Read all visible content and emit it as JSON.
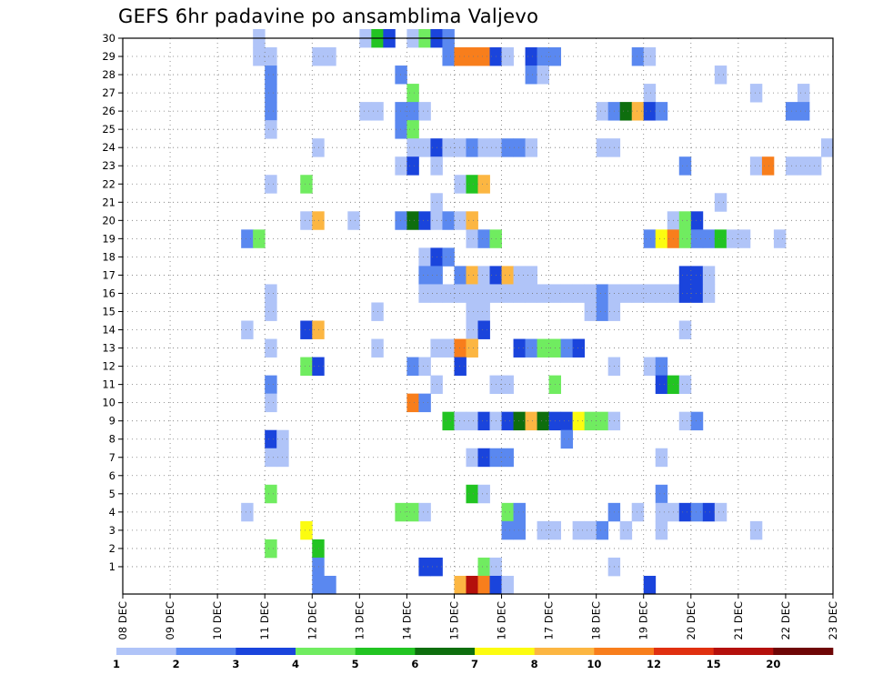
{
  "chart_data": {
    "type": "heatmap",
    "title": "GEFS 6hr padavine po ansamblima Valjevo",
    "x_ticks": [
      "08 DEC",
      "09 DEC",
      "10 DEC",
      "11 DEC",
      "12 DEC",
      "13 DEC",
      "14 DEC",
      "15 DEC",
      "16 DEC",
      "17 DEC",
      "18 DEC",
      "19 DEC",
      "20 DEC",
      "21 DEC",
      "22 DEC",
      "23 DEC"
    ],
    "y_ticks": [
      1,
      2,
      3,
      4,
      5,
      6,
      7,
      8,
      9,
      10,
      11,
      12,
      13,
      14,
      15,
      16,
      17,
      18,
      19,
      20,
      21,
      22,
      23,
      24,
      25,
      26,
      27,
      28,
      29,
      30
    ],
    "xlim": [
      "08 DEC 00Z",
      "23 DEC 00Z"
    ],
    "ylim": [
      0,
      30
    ],
    "time_step_hours": 6,
    "grid": "dotted",
    "legend": {
      "position": "bottom",
      "boundaries": [
        "1",
        "2",
        "3",
        "4",
        "5",
        "6",
        "7",
        "8",
        "10",
        "12",
        "15",
        "20"
      ],
      "colors": [
        "#b0c4f8",
        "#5a88f0",
        "#1a44dc",
        "#70ec60",
        "#22c422",
        "#0e6e0e",
        "#fcfc10",
        "#fcb642",
        "#f87e1c",
        "#e03010",
        "#b4100c",
        "#6e0606"
      ]
    },
    "cells": [
      {
        "m": 30,
        "s": [
          [
            11,
            1
          ],
          [
            20,
            1
          ],
          [
            21,
            5
          ],
          [
            22,
            3
          ],
          [
            24,
            1
          ],
          [
            25,
            4
          ],
          [
            26,
            3
          ],
          [
            27,
            2
          ]
        ]
      },
      {
        "m": 29,
        "s": [
          [
            11,
            1
          ],
          [
            12,
            1
          ],
          [
            16,
            1
          ],
          [
            17,
            1
          ],
          [
            27,
            2
          ],
          [
            28,
            9
          ],
          [
            29,
            9
          ],
          [
            30,
            9
          ],
          [
            31,
            3
          ],
          [
            32,
            1
          ],
          [
            34,
            3
          ],
          [
            35,
            2
          ],
          [
            36,
            2
          ],
          [
            43,
            2
          ],
          [
            44,
            1
          ]
        ]
      },
      {
        "m": 28,
        "s": [
          [
            12,
            2
          ],
          [
            23,
            2
          ],
          [
            34,
            2
          ],
          [
            35,
            1
          ],
          [
            50,
            1
          ]
        ]
      },
      {
        "m": 27,
        "s": [
          [
            12,
            2
          ],
          [
            24,
            4
          ],
          [
            44,
            1
          ],
          [
            53,
            1
          ],
          [
            57,
            1
          ]
        ]
      },
      {
        "m": 26,
        "s": [
          [
            12,
            2
          ],
          [
            20,
            1
          ],
          [
            21,
            1
          ],
          [
            23,
            2
          ],
          [
            24,
            2
          ],
          [
            25,
            1
          ],
          [
            40,
            1
          ],
          [
            41,
            2
          ],
          [
            42,
            6
          ],
          [
            43,
            8
          ],
          [
            44,
            3
          ],
          [
            45,
            2
          ],
          [
            56,
            2
          ],
          [
            57,
            2
          ]
        ]
      },
      {
        "m": 25,
        "s": [
          [
            12,
            1
          ],
          [
            23,
            2
          ],
          [
            24,
            4
          ]
        ]
      },
      {
        "m": 24,
        "s": [
          [
            16,
            1
          ],
          [
            24,
            1
          ],
          [
            25,
            1
          ],
          [
            26,
            3
          ],
          [
            27,
            1
          ],
          [
            28,
            1
          ],
          [
            29,
            2
          ],
          [
            30,
            1
          ],
          [
            31,
            1
          ],
          [
            32,
            2
          ],
          [
            33,
            2
          ],
          [
            34,
            1
          ],
          [
            40,
            1
          ],
          [
            41,
            1
          ],
          [
            59,
            1
          ]
        ]
      },
      {
        "m": 23,
        "s": [
          [
            23,
            1
          ],
          [
            24,
            3
          ],
          [
            26,
            1
          ],
          [
            47,
            2
          ],
          [
            53,
            1
          ],
          [
            54,
            9
          ],
          [
            56,
            1
          ],
          [
            57,
            1
          ],
          [
            58,
            1
          ]
        ]
      },
      {
        "m": 22,
        "s": [
          [
            12,
            1
          ],
          [
            15,
            4
          ],
          [
            28,
            1
          ],
          [
            29,
            5
          ],
          [
            30,
            8
          ]
        ]
      },
      {
        "m": 21,
        "s": [
          [
            26,
            1
          ],
          [
            50,
            1
          ]
        ]
      },
      {
        "m": 20,
        "s": [
          [
            15,
            1
          ],
          [
            16,
            8
          ],
          [
            19,
            1
          ],
          [
            23,
            2
          ],
          [
            24,
            6
          ],
          [
            25,
            3
          ],
          [
            26,
            1
          ],
          [
            27,
            2
          ],
          [
            28,
            1
          ],
          [
            29,
            8
          ],
          [
            46,
            1
          ],
          [
            47,
            4
          ],
          [
            48,
            3
          ]
        ]
      },
      {
        "m": 19,
        "s": [
          [
            10,
            2
          ],
          [
            11,
            4
          ],
          [
            29,
            1
          ],
          [
            30,
            2
          ],
          [
            31,
            4
          ],
          [
            44,
            2
          ],
          [
            45,
            7
          ],
          [
            46,
            9
          ],
          [
            47,
            4
          ],
          [
            48,
            2
          ],
          [
            49,
            2
          ],
          [
            50,
            5
          ],
          [
            51,
            1
          ],
          [
            52,
            1
          ],
          [
            55,
            1
          ]
        ]
      },
      {
        "m": 18,
        "s": [
          [
            25,
            1
          ],
          [
            26,
            3
          ],
          [
            27,
            2
          ]
        ]
      },
      {
        "m": 17,
        "s": [
          [
            25,
            2
          ],
          [
            26,
            2
          ],
          [
            28,
            2
          ],
          [
            29,
            8
          ],
          [
            30,
            1
          ],
          [
            31,
            3
          ],
          [
            32,
            8
          ],
          [
            33,
            1
          ],
          [
            34,
            1
          ],
          [
            47,
            3
          ],
          [
            48,
            3
          ],
          [
            49,
            1
          ]
        ]
      },
      {
        "m": 16,
        "s": [
          [
            12,
            1
          ],
          [
            25,
            1
          ],
          [
            26,
            1
          ],
          [
            27,
            1
          ],
          [
            28,
            1
          ],
          [
            29,
            1
          ],
          [
            30,
            1
          ],
          [
            31,
            1
          ],
          [
            32,
            1
          ],
          [
            33,
            1
          ],
          [
            34,
            1
          ],
          [
            35,
            1
          ],
          [
            36,
            1
          ],
          [
            37,
            1
          ],
          [
            38,
            1
          ],
          [
            39,
            1
          ],
          [
            40,
            2
          ],
          [
            41,
            1
          ],
          [
            42,
            1
          ],
          [
            43,
            1
          ],
          [
            44,
            1
          ],
          [
            45,
            1
          ],
          [
            46,
            1
          ],
          [
            47,
            3
          ],
          [
            48,
            3
          ],
          [
            49,
            1
          ]
        ]
      },
      {
        "m": 15,
        "s": [
          [
            12,
            1
          ],
          [
            21,
            1
          ],
          [
            29,
            1
          ],
          [
            30,
            1
          ],
          [
            39,
            1
          ],
          [
            40,
            2
          ],
          [
            41,
            1
          ]
        ]
      },
      {
        "m": 14,
        "s": [
          [
            10,
            1
          ],
          [
            15,
            3
          ],
          [
            16,
            8
          ],
          [
            29,
            1
          ],
          [
            30,
            3
          ],
          [
            47,
            1
          ]
        ]
      },
      {
        "m": 13,
        "s": [
          [
            12,
            1
          ],
          [
            21,
            1
          ],
          [
            26,
            1
          ],
          [
            27,
            1
          ],
          [
            28,
            9
          ],
          [
            29,
            8
          ],
          [
            33,
            3
          ],
          [
            34,
            2
          ],
          [
            35,
            4
          ],
          [
            36,
            4
          ],
          [
            37,
            2
          ],
          [
            38,
            3
          ]
        ]
      },
      {
        "m": 12,
        "s": [
          [
            15,
            4
          ],
          [
            16,
            3
          ],
          [
            24,
            2
          ],
          [
            25,
            1
          ],
          [
            28,
            3
          ],
          [
            41,
            1
          ],
          [
            44,
            1
          ],
          [
            45,
            2
          ]
        ]
      },
      {
        "m": 11,
        "s": [
          [
            12,
            2
          ],
          [
            26,
            1
          ],
          [
            31,
            1
          ],
          [
            32,
            1
          ],
          [
            36,
            4
          ],
          [
            45,
            3
          ],
          [
            46,
            5
          ],
          [
            47,
            1
          ]
        ]
      },
      {
        "m": 10,
        "s": [
          [
            12,
            1
          ],
          [
            24,
            9
          ],
          [
            25,
            2
          ]
        ]
      },
      {
        "m": 9,
        "s": [
          [
            27,
            5
          ],
          [
            28,
            1
          ],
          [
            29,
            1
          ],
          [
            30,
            3
          ],
          [
            31,
            1
          ],
          [
            32,
            3
          ],
          [
            33,
            6
          ],
          [
            34,
            8
          ],
          [
            35,
            6
          ],
          [
            36,
            3
          ],
          [
            37,
            3
          ],
          [
            38,
            7
          ],
          [
            39,
            4
          ],
          [
            40,
            4
          ],
          [
            41,
            1
          ],
          [
            47,
            1
          ],
          [
            48,
            2
          ]
        ]
      },
      {
        "m": 8,
        "s": [
          [
            12,
            3
          ],
          [
            13,
            1
          ],
          [
            37,
            2
          ]
        ]
      },
      {
        "m": 7,
        "s": [
          [
            12,
            1
          ],
          [
            13,
            1
          ],
          [
            29,
            1
          ],
          [
            30,
            3
          ],
          [
            31,
            2
          ],
          [
            32,
            2
          ],
          [
            45,
            1
          ]
        ]
      },
      {
        "m": 5,
        "s": [
          [
            12,
            4
          ],
          [
            29,
            5
          ],
          [
            30,
            1
          ],
          [
            45,
            2
          ]
        ]
      },
      {
        "m": 4,
        "s": [
          [
            10,
            1
          ],
          [
            23,
            4
          ],
          [
            24,
            4
          ],
          [
            25,
            1
          ],
          [
            32,
            4
          ],
          [
            33,
            2
          ],
          [
            41,
            2
          ],
          [
            43,
            1
          ],
          [
            45,
            1
          ],
          [
            46,
            1
          ],
          [
            47,
            3
          ],
          [
            48,
            2
          ],
          [
            49,
            3
          ],
          [
            50,
            1
          ]
        ]
      },
      {
        "m": 3,
        "s": [
          [
            15,
            7
          ],
          [
            32,
            2
          ],
          [
            33,
            2
          ],
          [
            35,
            1
          ],
          [
            36,
            1
          ],
          [
            38,
            1
          ],
          [
            39,
            1
          ],
          [
            40,
            2
          ],
          [
            42,
            1
          ],
          [
            45,
            1
          ],
          [
            53,
            1
          ]
        ]
      },
      {
        "m": 2,
        "s": [
          [
            12,
            4
          ],
          [
            16,
            5
          ]
        ]
      },
      {
        "m": 1,
        "s": [
          [
            16,
            2
          ],
          [
            25,
            3
          ],
          [
            26,
            3
          ],
          [
            30,
            4
          ],
          [
            31,
            1
          ],
          [
            41,
            1
          ]
        ]
      },
      {
        "m": 0,
        "s": [
          [
            16,
            2
          ],
          [
            17,
            2
          ],
          [
            28,
            8
          ],
          [
            29,
            11
          ],
          [
            30,
            9
          ],
          [
            31,
            3
          ],
          [
            32,
            1
          ],
          [
            44,
            3
          ]
        ]
      }
    ]
  }
}
